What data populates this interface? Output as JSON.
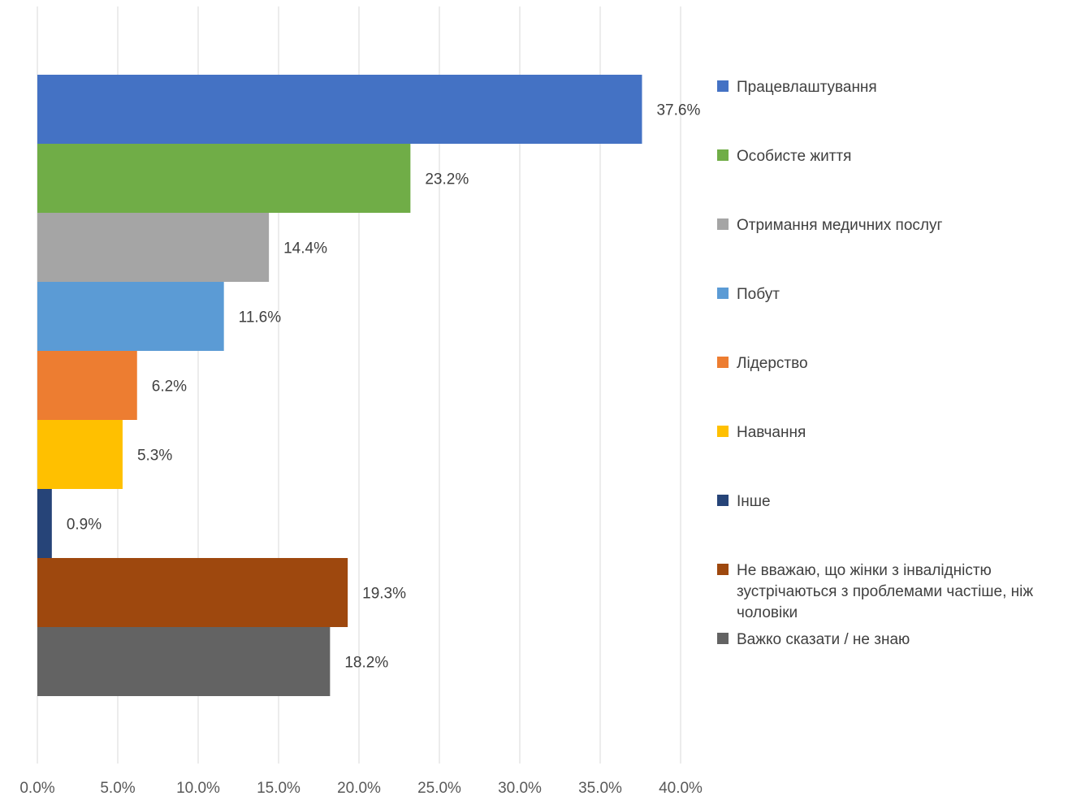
{
  "chart_data": {
    "type": "bar",
    "orientation": "horizontal",
    "categories": [
      "Працевлаштування",
      "Особисте життя",
      "Отримання медичних послуг",
      "Побут",
      "Лідерство",
      "Навчання",
      "Інше",
      "Не вважаю, що жінки з інвалідністю зустрічаються з проблемами частіше, ніж чоловіки",
      "Важко сказати / не знаю"
    ],
    "values": [
      37.6,
      23.2,
      14.4,
      11.6,
      6.2,
      5.3,
      0.9,
      19.3,
      18.2
    ],
    "value_labels": [
      "37.6%",
      "23.2%",
      "14.4%",
      "11.6%",
      "6.2%",
      "5.3%",
      "0.9%",
      "19.3%",
      "18.2%"
    ],
    "colors": [
      "#4472C4",
      "#70AD47",
      "#A5A5A5",
      "#5B9BD5",
      "#ED7D31",
      "#FFC000",
      "#264478",
      "#9E480E",
      "#636363"
    ],
    "xlim": [
      0,
      40
    ],
    "x_ticks": [
      0,
      5,
      10,
      15,
      20,
      25,
      30,
      35,
      40
    ],
    "x_tick_labels": [
      "0.0%",
      "5.0%",
      "10.0%",
      "15.0%",
      "20.0%",
      "25.0%",
      "30.0%",
      "35.0%",
      "40.0%"
    ],
    "grid": true,
    "legend_position": "right",
    "title": "",
    "xlabel": "",
    "ylabel": ""
  }
}
